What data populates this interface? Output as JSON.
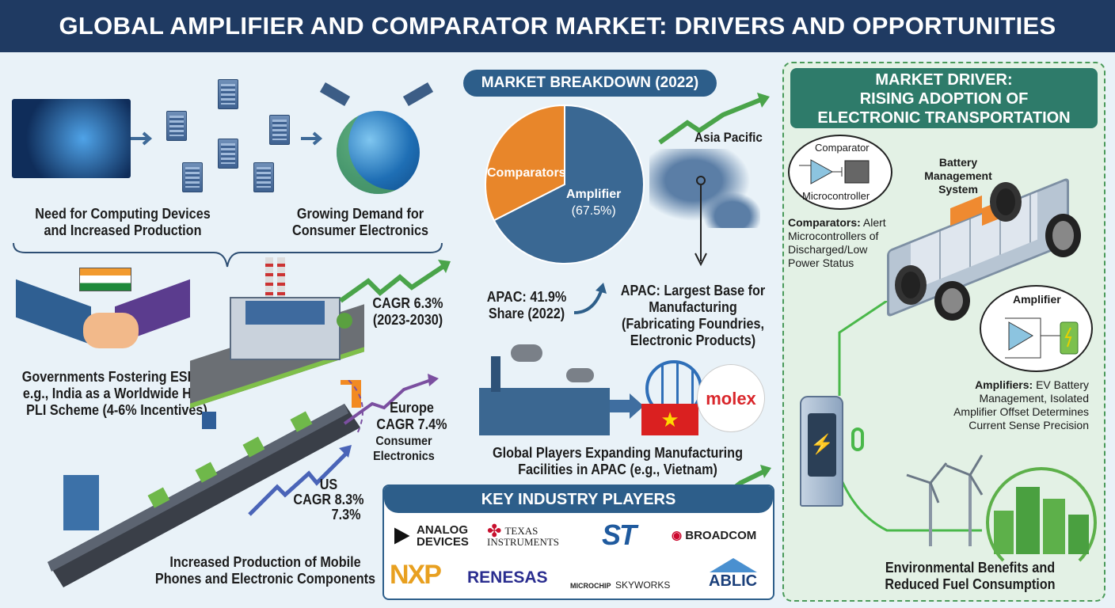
{
  "title": "GLOBAL AMPLIFIER AND COMPARATOR MARKET: DRIVERS AND OPPORTUNITIES",
  "left": {
    "computing": [
      "Need for Computing Devices",
      "and Increased Production"
    ],
    "consumer": [
      "Growing Demand for",
      "Consumer Electronics"
    ],
    "government": [
      "Governments Fostering ESDM:",
      "e.g., India as a Worldwide Hub,",
      "PLI Scheme (4-6% Incentives)"
    ],
    "cagr_global": [
      "CAGR 6.3%",
      "(2023-2030)"
    ],
    "europe": [
      "Europe",
      "CAGR 7.4%"
    ],
    "consumer_electronics": [
      "Consumer",
      "Electronics"
    ],
    "us": [
      "US",
      "CAGR 8.3%",
      "7.3%"
    ],
    "mobile": [
      "Increased Production of Mobile",
      "Phones and Electronic Components"
    ]
  },
  "center": {
    "breakdown_title": "MARKET BREAKDOWN (2022)",
    "pie": {
      "slices": [
        {
          "label": "Comparators",
          "value": 32.5,
          "color": "#e8862a"
        },
        {
          "label": "Amplifier",
          "value": 67.5,
          "color": "#3a6893"
        }
      ],
      "amplifier_pct": "(67.5%)"
    },
    "apac_share": [
      "APAC: 41.9%",
      "Share (2022)"
    ],
    "asia_pacific": "Asia Pacific",
    "apac_base": [
      "APAC: Largest Base for",
      "Manufacturing",
      "(Fabricating Foundries,",
      "Electronic Products)"
    ],
    "molex": "molex",
    "global_players": [
      "Global Players Expanding Manufacturing",
      "Facilities in APAC (e.g., Vietnam)"
    ],
    "key_players_title": "KEY INDUSTRY PLAYERS",
    "players": [
      "ANALOG",
      "DEVICES",
      "TEXAS",
      "INSTRUMENTS",
      "ST",
      "BROADCOM",
      "NXP",
      "RENESAS",
      "MICROCHIP",
      "SKYWORKS",
      "ABLIC"
    ]
  },
  "right": {
    "header": [
      "MARKET DRIVER:",
      "RISING ADOPTION OF",
      "ELECTRONIC TRANSPORTATION"
    ],
    "comparator": "Comparator",
    "microcontroller": "Microcontroller",
    "bms": [
      "Battery",
      "Management",
      "System"
    ],
    "comparators_bold": "Comparators:",
    "comparators_text": " Alert Microcontrollers of Discharged/Low Power Status",
    "amplifier": "Amplifier",
    "amplifiers_bold": "Amplifiers:",
    "amplifiers_text": " EV Battery Management, Isolated Amplifier Offset Determines Current Sense Precision",
    "environment": [
      "Environmental Benefits and",
      "Reduced Fuel Consumption"
    ]
  }
}
